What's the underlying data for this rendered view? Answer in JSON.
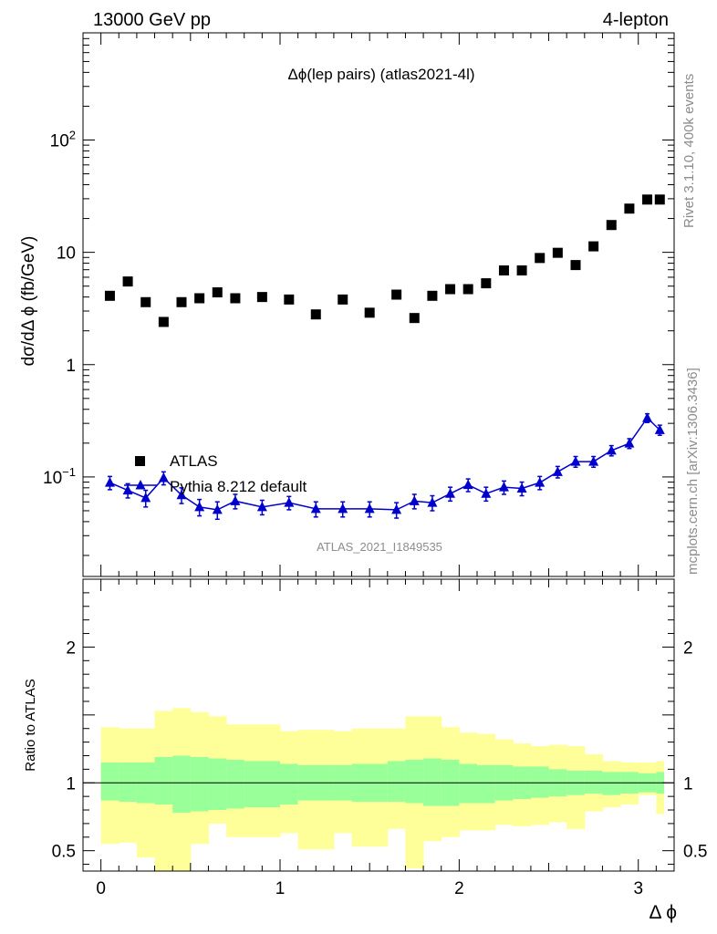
{
  "header": {
    "left": "13000 GeV pp",
    "right": "4-lepton",
    "title": "Δϕ(lep pairs) (atlas2021-4l)",
    "watermark": "ATLAS_2021_I1849535",
    "rivet": "Rivet 3.1.10,  400k events",
    "mcplots": "mcplots.cern.ch [arXiv:1306.3436]"
  },
  "colors": {
    "data": "#000000",
    "mc": "#0000cc",
    "band_inner": "#99ff99",
    "band_outer": "#ffff99",
    "side_text": "#8c8c8c"
  },
  "chart_data": [
    {
      "type": "scatter",
      "yscale": "log",
      "ylabel": "dσ/dΔ ϕ (fb/GeV)",
      "xlim": [
        -0.1,
        3.2
      ],
      "ylim": [
        0.013,
        900
      ],
      "yticks": [
        {
          "value": 0.1,
          "base": "10",
          "exp": "−1"
        },
        {
          "value": 1,
          "base": "1",
          "exp": ""
        },
        {
          "value": 10,
          "base": "10",
          "exp": ""
        },
        {
          "value": 100,
          "base": "10",
          "exp": "2"
        }
      ],
      "bin_edges": [
        0,
        0.1,
        0.2,
        0.3,
        0.4,
        0.5,
        0.6,
        0.7,
        0.8,
        1.0,
        1.1,
        1.3,
        1.4,
        1.6,
        1.7,
        1.8,
        1.9,
        2.0,
        2.1,
        2.2,
        2.3,
        2.4,
        2.5,
        2.6,
        2.7,
        2.8,
        2.9,
        3.0,
        3.1,
        3.142
      ],
      "legend": [
        {
          "label": "ATLAS",
          "marker": "square"
        },
        {
          "label": "Pythia 8.212 default",
          "marker": "triangle"
        }
      ],
      "series": [
        {
          "name": "ATLAS",
          "x": [
            0.05,
            0.15,
            0.25,
            0.35,
            0.45,
            0.55,
            0.65,
            0.75,
            0.9,
            1.05,
            1.2,
            1.35,
            1.5,
            1.65,
            1.75,
            1.85,
            1.95,
            2.05,
            2.15,
            2.25,
            2.35,
            2.45,
            2.55,
            2.65,
            2.75,
            2.85,
            2.95,
            3.05,
            3.12
          ],
          "y": [
            4.1,
            5.5,
            3.6,
            2.4,
            3.6,
            3.9,
            4.4,
            3.9,
            4.0,
            3.8,
            2.8,
            3.8,
            2.9,
            4.2,
            2.6,
            4.1,
            4.7,
            4.7,
            5.3,
            6.9,
            6.9,
            8.9,
            9.9,
            7.7,
            11.3,
            17.5,
            24.5,
            29.5,
            29.5
          ]
        },
        {
          "name": "Pythia 8.212 default",
          "x": [
            0.05,
            0.15,
            0.25,
            0.35,
            0.45,
            0.55,
            0.65,
            0.75,
            0.9,
            1.05,
            1.2,
            1.35,
            1.5,
            1.65,
            1.75,
            1.85,
            1.95,
            2.05,
            2.15,
            2.25,
            2.35,
            2.45,
            2.55,
            2.65,
            2.75,
            2.85,
            2.95,
            3.05,
            3.12
          ],
          "y": [
            0.089,
            0.076,
            0.065,
            0.098,
            0.069,
            0.054,
            0.051,
            0.061,
            0.054,
            0.059,
            0.052,
            0.052,
            0.052,
            0.051,
            0.061,
            0.059,
            0.071,
            0.085,
            0.071,
            0.081,
            0.079,
            0.089,
            0.111,
            0.137,
            0.137,
            0.172,
            0.199,
            0.335,
            0.262
          ],
          "err": [
            0.012,
            0.011,
            0.011,
            0.013,
            0.011,
            0.009,
            0.009,
            0.009,
            0.008,
            0.008,
            0.008,
            0.008,
            0.008,
            0.008,
            0.009,
            0.009,
            0.01,
            0.011,
            0.01,
            0.011,
            0.011,
            0.012,
            0.013,
            0.015,
            0.015,
            0.018,
            0.02,
            0.03,
            0.027
          ]
        }
      ]
    },
    {
      "type": "area",
      "ylabel": "Ratio to ATLAS",
      "xlabel": "Δ ϕ",
      "xlim": [
        -0.1,
        3.2
      ],
      "ylim": [
        0.35,
        2.5
      ],
      "xticks": [
        0,
        1,
        2,
        3
      ],
      "yticks": [
        0.5,
        1,
        2
      ],
      "reference": 1,
      "inner_band": {
        "upper": [
          1.15,
          1.15,
          1.15,
          1.19,
          1.2,
          1.19,
          1.18,
          1.17,
          1.16,
          1.14,
          1.13,
          1.13,
          1.14,
          1.16,
          1.17,
          1.18,
          1.17,
          1.14,
          1.13,
          1.13,
          1.12,
          1.12,
          1.1,
          1.09,
          1.09,
          1.08,
          1.08,
          1.07,
          1.08
        ],
        "lower": [
          0.87,
          0.86,
          0.85,
          0.84,
          0.78,
          0.79,
          0.8,
          0.81,
          0.82,
          0.84,
          0.87,
          0.87,
          0.86,
          0.86,
          0.85,
          0.83,
          0.83,
          0.85,
          0.85,
          0.87,
          0.88,
          0.89,
          0.9,
          0.91,
          0.92,
          0.91,
          0.92,
          0.93,
          0.92
        ]
      },
      "outer_band": {
        "upper": [
          1.41,
          1.4,
          1.4,
          1.53,
          1.55,
          1.52,
          1.49,
          1.43,
          1.43,
          1.38,
          1.39,
          1.38,
          1.4,
          1.4,
          1.49,
          1.49,
          1.41,
          1.37,
          1.36,
          1.32,
          1.29,
          1.27,
          1.28,
          1.27,
          1.21,
          1.16,
          1.15,
          1.15,
          1.16
        ],
        "lower": [
          0.55,
          0.56,
          0.45,
          0.33,
          0.29,
          0.55,
          0.7,
          0.6,
          0.6,
          0.63,
          0.51,
          0.63,
          0.53,
          0.66,
          0.37,
          0.57,
          0.6,
          0.65,
          0.65,
          0.69,
          0.68,
          0.69,
          0.71,
          0.66,
          0.79,
          0.82,
          0.84,
          0.91,
          0.77
        ]
      }
    }
  ]
}
